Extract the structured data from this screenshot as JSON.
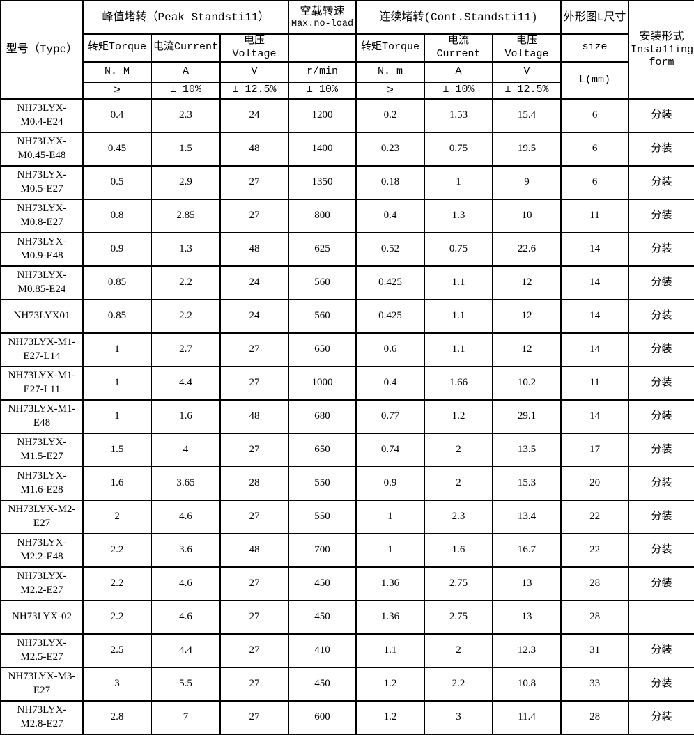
{
  "table": {
    "header": {
      "type_label": "型号（Type）",
      "peak_group": "峰值堵转（Peak Standsti11）",
      "noload_line1": "空载转速",
      "noload_line2": "Max.no-load",
      "cont_group": "连续堵转(Cont.Standsti11)",
      "size_group": "外形图L尺寸",
      "install_line1": "安装形式",
      "install_line2": "Insta11ing",
      "install_line3": "form",
      "peak_torque_label": "转矩Torque",
      "peak_current_label": "电流Current",
      "peak_voltage_label": "电压Voltage",
      "cont_torque_label": "转矩Torque",
      "cont_current_label": "电流Current",
      "cont_voltage_label": "电压Voltage",
      "size_label": "size",
      "unit_peak_torque": "N. M",
      "unit_peak_current": "A",
      "unit_peak_voltage": "V",
      "unit_speed": "r/min",
      "unit_cont_torque": "N. m",
      "unit_cont_current": "A",
      "unit_cont_voltage": "V",
      "unit_size": "L(mm)",
      "tol_peak_torque": "≥",
      "tol_peak_current": "± 10%",
      "tol_peak_voltage": "± 12.5%",
      "tol_speed": "± 10%",
      "tol_cont_torque": "≥",
      "tol_cont_current": "± 10%",
      "tol_cont_voltage": "± 12.5%"
    },
    "rows": [
      {
        "model": "NH73LYX-M0.4-E24",
        "peak_torque": "0.4",
        "peak_current": "2.3",
        "peak_voltage": "24",
        "noload_speed": "1200",
        "cont_torque": "0.2",
        "cont_current": "1.53",
        "cont_voltage": "15.4",
        "size_l": "6",
        "install_form": "分装"
      },
      {
        "model": "NH73LYX-M0.45-E48",
        "peak_torque": "0.45",
        "peak_current": "1.5",
        "peak_voltage": "48",
        "noload_speed": "1400",
        "cont_torque": "0.23",
        "cont_current": "0.75",
        "cont_voltage": "19.5",
        "size_l": "6",
        "install_form": "分装"
      },
      {
        "model": "NH73LYX-M0.5-E27",
        "peak_torque": "0.5",
        "peak_current": "2.9",
        "peak_voltage": "27",
        "noload_speed": "1350",
        "cont_torque": "0.18",
        "cont_current": "1",
        "cont_voltage": "9",
        "size_l": "6",
        "install_form": "分装"
      },
      {
        "model": "NH73LYX-M0.8-E27",
        "peak_torque": "0.8",
        "peak_current": "2.85",
        "peak_voltage": "27",
        "noload_speed": "800",
        "cont_torque": "0.4",
        "cont_current": "1.3",
        "cont_voltage": "10",
        "size_l": "11",
        "install_form": "分装"
      },
      {
        "model": "NH73LYX-M0.9-E48",
        "peak_torque": "0.9",
        "peak_current": "1.3",
        "peak_voltage": "48",
        "noload_speed": "625",
        "cont_torque": "0.52",
        "cont_current": "0.75",
        "cont_voltage": "22.6",
        "size_l": "14",
        "install_form": "分装"
      },
      {
        "model": "NH73LYX-M0.85-E24",
        "peak_torque": "0.85",
        "peak_current": "2.2",
        "peak_voltage": "24",
        "noload_speed": "560",
        "cont_torque": "0.425",
        "cont_current": "1.1",
        "cont_voltage": "12",
        "size_l": "14",
        "install_form": "分装"
      },
      {
        "model": "NH73LYX01",
        "peak_torque": "0.85",
        "peak_current": "2.2",
        "peak_voltage": "24",
        "noload_speed": "560",
        "cont_torque": "0.425",
        "cont_current": "1.1",
        "cont_voltage": "12",
        "size_l": "14",
        "install_form": "分装"
      },
      {
        "model": "NH73LYX-M1-E27-L14",
        "peak_torque": "1",
        "peak_current": "2.7",
        "peak_voltage": "27",
        "noload_speed": "650",
        "cont_torque": "0.6",
        "cont_current": "1.1",
        "cont_voltage": "12",
        "size_l": "14",
        "install_form": "分装"
      },
      {
        "model": "NH73LYX-M1-E27-L11",
        "peak_torque": "1",
        "peak_current": "4.4",
        "peak_voltage": "27",
        "noload_speed": "1000",
        "cont_torque": "0.4",
        "cont_current": "1.66",
        "cont_voltage": "10.2",
        "size_l": "11",
        "install_form": "分装"
      },
      {
        "model": "NH73LYX-M1-E48",
        "peak_torque": "1",
        "peak_current": "1.6",
        "peak_voltage": "48",
        "noload_speed": "680",
        "cont_torque": "0.77",
        "cont_current": "1.2",
        "cont_voltage": "29.1",
        "size_l": "14",
        "install_form": "分装"
      },
      {
        "model": "NH73LYX-M1.5-E27",
        "peak_torque": "1.5",
        "peak_current": "4",
        "peak_voltage": "27",
        "noload_speed": "650",
        "cont_torque": "0.74",
        "cont_current": "2",
        "cont_voltage": "13.5",
        "size_l": "17",
        "install_form": "分装"
      },
      {
        "model": "NH73LYX-M1.6-E28",
        "peak_torque": "1.6",
        "peak_current": "3.65",
        "peak_voltage": "28",
        "noload_speed": "550",
        "cont_torque": "0.9",
        "cont_current": "2",
        "cont_voltage": "15.3",
        "size_l": "20",
        "install_form": "分装"
      },
      {
        "model": "NH73LYX-M2-E27",
        "peak_torque": "2",
        "peak_current": "4.6",
        "peak_voltage": "27",
        "noload_speed": "550",
        "cont_torque": "1",
        "cont_current": "2.3",
        "cont_voltage": "13.4",
        "size_l": "22",
        "install_form": "分装"
      },
      {
        "model": "NH73LYX-M2.2-E48",
        "peak_torque": "2.2",
        "peak_current": "3.6",
        "peak_voltage": "48",
        "noload_speed": "700",
        "cont_torque": "1",
        "cont_current": "1.6",
        "cont_voltage": "16.7",
        "size_l": "22",
        "install_form": "分装"
      },
      {
        "model": "NH73LYX-M2.2-E27",
        "peak_torque": "2.2",
        "peak_current": "4.6",
        "peak_voltage": "27",
        "noload_speed": "450",
        "cont_torque": "1.36",
        "cont_current": "2.75",
        "cont_voltage": "13",
        "size_l": "28",
        "install_form": "分装"
      },
      {
        "model": "NH73LYX-02",
        "peak_torque": "2.2",
        "peak_current": "4.6",
        "peak_voltage": "27",
        "noload_speed": "450",
        "cont_torque": "1.36",
        "cont_current": "2.75",
        "cont_voltage": "13",
        "size_l": "28",
        "install_form": ""
      },
      {
        "model": "NH73LYX-M2.5-E27",
        "peak_torque": "2.5",
        "peak_current": "4.4",
        "peak_voltage": "27",
        "noload_speed": "410",
        "cont_torque": "1.1",
        "cont_current": "2",
        "cont_voltage": "12.3",
        "size_l": "31",
        "install_form": "分装"
      },
      {
        "model": "NH73LYX-M3-E27",
        "peak_torque": "3",
        "peak_current": "5.5",
        "peak_voltage": "27",
        "noload_speed": "450",
        "cont_torque": "1.2",
        "cont_current": "2.2",
        "cont_voltage": "10.8",
        "size_l": "33",
        "install_form": "分装"
      },
      {
        "model": "NH73LYX-M2.8-E27",
        "peak_torque": "2.8",
        "peak_current": "7",
        "peak_voltage": "27",
        "noload_speed": "600",
        "cont_torque": "1.2",
        "cont_current": "3",
        "cont_voltage": "11.4",
        "size_l": "28",
        "install_form": "分装"
      }
    ]
  }
}
